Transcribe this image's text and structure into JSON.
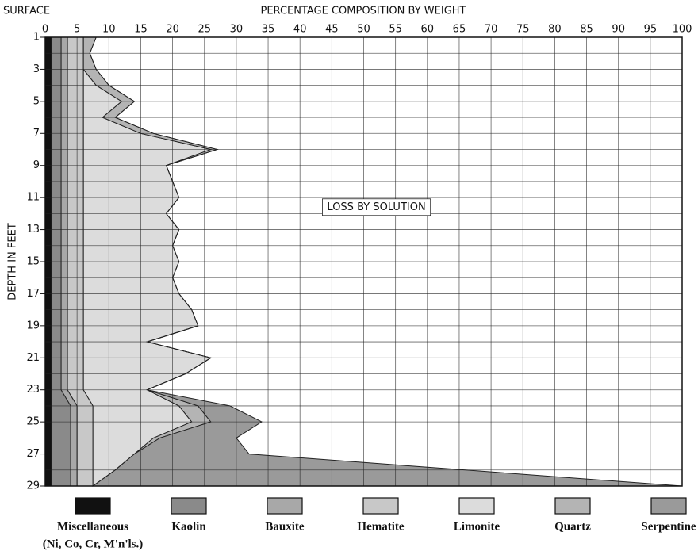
{
  "chart_data": {
    "type": "stacked-area-horizontal",
    "title": "PERCENTAGE COMPOSITION BY WEIGHT",
    "corner_label": "SURFACE",
    "y_label": "DEPTH IN FEET",
    "annotation": "LOSS BY SOLUTION",
    "annotation_at": {
      "x": 52,
      "y": 11.6
    },
    "legend_note": "(Ni, Co, Cr, M'n'ls.)",
    "y": [
      1,
      2,
      3,
      4,
      5,
      6,
      7,
      8,
      9,
      10,
      11,
      12,
      13,
      14,
      15,
      16,
      17,
      18,
      19,
      20,
      21,
      22,
      23,
      24,
      25,
      26,
      27,
      28,
      29
    ],
    "ylim": [
      1,
      29
    ],
    "yticks": [
      1,
      3,
      5,
      7,
      9,
      11,
      13,
      15,
      17,
      19,
      21,
      23,
      25,
      27,
      29
    ],
    "y_inverted": true,
    "xlim": [
      0,
      100
    ],
    "xticks": [
      0,
      5,
      10,
      15,
      20,
      25,
      30,
      35,
      40,
      45,
      50,
      55,
      60,
      65,
      70,
      75,
      80,
      85,
      90,
      95,
      100
    ],
    "grid": true,
    "series": [
      {
        "name": "Miscellaneous",
        "color": "#111111",
        "values": [
          1,
          1,
          1,
          1,
          1,
          1,
          1,
          1,
          1,
          1,
          1,
          1,
          1,
          1,
          1,
          1,
          1,
          1,
          1,
          1,
          1,
          1,
          1,
          1,
          1,
          1,
          1,
          1,
          1
        ]
      },
      {
        "name": "Kaolin",
        "color": "#8a8a8a",
        "values": [
          1.5,
          1.5,
          1.5,
          1.5,
          1.5,
          1.5,
          1.5,
          1.5,
          1.5,
          1.5,
          1.5,
          1.5,
          1.5,
          1.5,
          1.5,
          1.5,
          1.5,
          1.5,
          1.5,
          1.5,
          1.5,
          1.5,
          1.5,
          3,
          3,
          3,
          3,
          3,
          3
        ]
      },
      {
        "name": "Bauxite",
        "color": "#a8a8a8",
        "values": [
          1,
          1,
          1,
          1,
          1,
          1,
          1,
          1,
          1,
          1,
          1,
          1,
          1,
          1,
          1,
          1,
          1,
          1,
          1,
          1,
          1,
          1,
          1,
          1,
          1,
          1,
          1,
          1,
          1
        ]
      },
      {
        "name": "Hematite",
        "color": "#c8c8c8",
        "values": [
          2.5,
          2.5,
          2.5,
          2.5,
          2.5,
          2.5,
          2.5,
          2.5,
          2.5,
          2.5,
          2.5,
          2.5,
          2.5,
          2.5,
          2.5,
          2.5,
          2.5,
          2.5,
          2.5,
          2.5,
          2.5,
          2.5,
          2.5,
          2.5,
          2.5,
          2.5,
          2.5,
          2.5,
          2.5
        ]
      },
      {
        "name": "Limonite",
        "color": "#dcdcdc",
        "values": [
          0,
          0,
          0,
          2,
          6,
          3,
          9,
          20,
          13,
          14,
          15,
          13,
          15,
          14,
          15,
          14,
          15,
          17,
          18,
          10,
          20,
          16,
          10,
          13.5,
          15.5,
          9.5,
          6.5,
          3.5,
          0
        ]
      },
      {
        "name": "Quartz",
        "color": "#b4b4b4",
        "values": [
          2,
          1,
          2,
          2,
          2,
          2,
          2,
          1,
          0,
          0,
          0,
          0,
          0,
          0,
          0,
          0,
          0,
          0,
          0,
          0,
          0,
          0,
          0,
          3,
          3,
          1,
          0,
          0,
          0
        ]
      },
      {
        "name": "Serpentine",
        "color": "#9a9a9a",
        "values": [
          0,
          0,
          0,
          0,
          0,
          0,
          0,
          0,
          0,
          0,
          0,
          0,
          0,
          0,
          0,
          0,
          0,
          0,
          0,
          0,
          0,
          0,
          0,
          5,
          8,
          12,
          18,
          55,
          92.5
        ]
      }
    ]
  }
}
